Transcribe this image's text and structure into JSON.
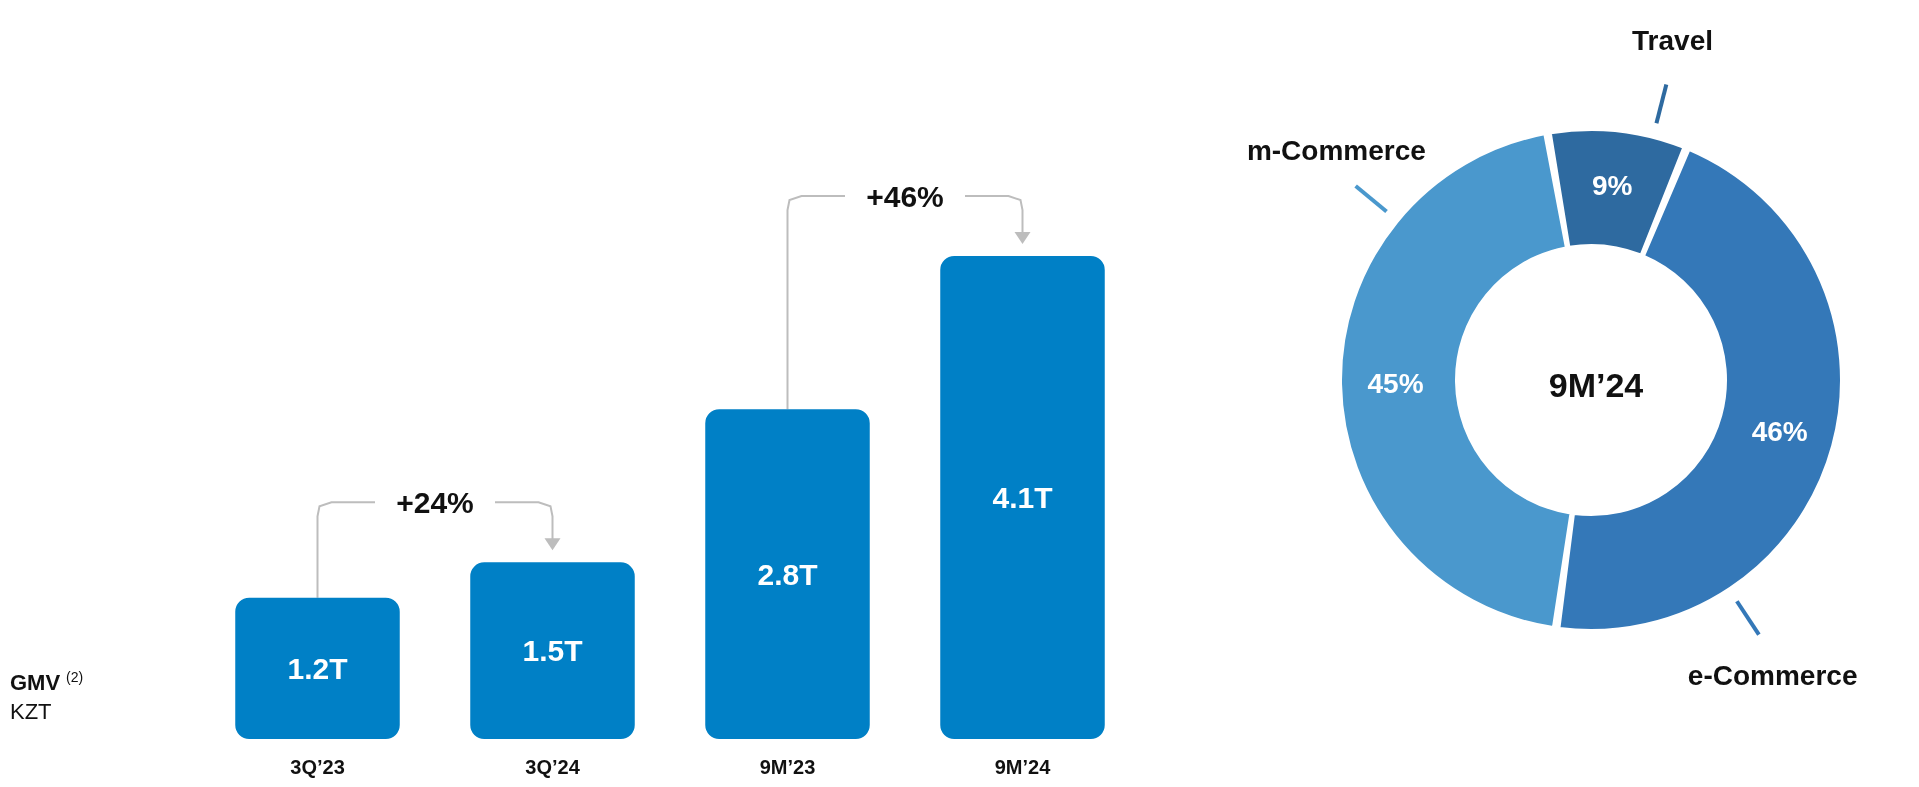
{
  "chart_data": [
    {
      "type": "bar",
      "categories": [
        "3Q’23",
        "3Q’24",
        "9M’23",
        "9M’24"
      ],
      "values": [
        1.2,
        1.5,
        2.8,
        4.1
      ],
      "value_labels": [
        "1.2T",
        "1.5T",
        "2.8T",
        "4.1T"
      ],
      "color": "#0080c6",
      "tick_labels": "x",
      "grid": false,
      "legend": false,
      "annotations": [
        {
          "text": "+24%",
          "x": "3Q’24",
          "y": 1.5
        },
        {
          "text": "+46%",
          "x": "9M’24",
          "y": 4.1
        },
        "GMV$^{(2)}$",
        "KZT"
      ]
    },
    {
      "type": "donut",
      "title": "9M’24",
      "categories": [
        "Travel",
        "e-Commerce",
        "m-Commerce"
      ],
      "values": [
        9,
        46,
        45
      ],
      "colors": [
        "#2e6aa0",
        "#3478b8",
        "#4a98cd"
      ],
      "value_labels": [
        "9%",
        "46%",
        "45%"
      ],
      "legend": false
    }
  ]
}
